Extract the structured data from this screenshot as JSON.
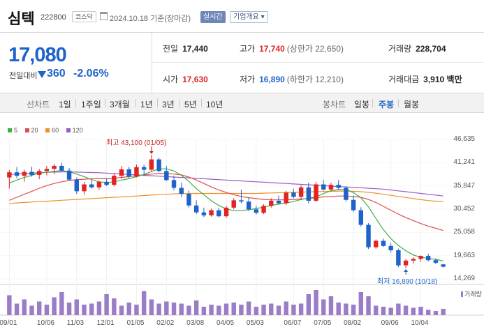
{
  "header": {
    "name": "심텍",
    "code": "222800",
    "market": "코스닥",
    "date": "2024.10.18",
    "basis": "기준(장마감)",
    "realtime": "실시간",
    "company": "기업개요 ▾"
  },
  "quote": {
    "price": "17,080",
    "change_label": "전일대비",
    "change": "360",
    "change_pct": "-2.06%",
    "prev_label": "전일",
    "prev": "17,440",
    "high_label": "고가",
    "high": "17,740",
    "upper": "(상한가 22,650)",
    "volume_label": "거래량",
    "volume": "228,704",
    "open_label": "시가",
    "open": "17,630",
    "low_label": "저가",
    "low": "16,890",
    "lower": "(하한가 12,210)",
    "amount_label": "거래대금",
    "amount": "3,910 백만"
  },
  "tabs": {
    "line_label": "선차트",
    "line_items": [
      "1일",
      "1주일",
      "3개월",
      "1년",
      "3년",
      "5년",
      "10년"
    ],
    "candle_label": "봉차트",
    "candle_items": [
      "일봉",
      "주봉",
      "월봉"
    ],
    "active": "주봉"
  },
  "colors": {
    "up": "#e12323",
    "down": "#1d63c9",
    "ma5": "#3fae49",
    "ma20": "#e14b4b",
    "ma60": "#f08f2a",
    "ma120": "#9b5cc2",
    "volume": "#9b7cc7"
  },
  "chart_data": {
    "type": "candlestick",
    "legend": [
      {
        "name": "5",
        "color": "#3fae49"
      },
      {
        "name": "20",
        "color": "#e14b4b"
      },
      {
        "name": "60",
        "color": "#f08f2a"
      },
      {
        "name": "120",
        "color": "#9b5cc2"
      }
    ],
    "y_ticks": [
      "46,635",
      "41,241",
      "35,847",
      "30,452",
      "25,058",
      "19,663",
      "14,269"
    ],
    "ylim": [
      14269,
      46635
    ],
    "x_ticks": [
      "09/01",
      "10/06",
      "11/03",
      "12/01",
      "01/05",
      "02/02",
      "03/08",
      "04/05",
      "05/03",
      "06/07",
      "07/05",
      "08/02",
      "09/06",
      "10/04"
    ],
    "high_annotation": "최고 43,100 (01/05)",
    "low_annotation": "최저 16,890 (10/18)",
    "volume_label": "거래량",
    "candles": [
      [
        37800,
        39500,
        35200,
        39000
      ],
      [
        39000,
        40200,
        37600,
        38200
      ],
      [
        38200,
        39600,
        36800,
        39100
      ],
      [
        39100,
        40300,
        38000,
        38400
      ],
      [
        38400,
        39800,
        37400,
        39300
      ],
      [
        39300,
        40500,
        38300,
        39800
      ],
      [
        39800,
        41000,
        38600,
        40500
      ],
      [
        40500,
        41200,
        39000,
        39400
      ],
      [
        39400,
        40000,
        37000,
        37300
      ],
      [
        37300,
        37800,
        34000,
        34600
      ],
      [
        34600,
        36800,
        33800,
        36200
      ],
      [
        36200,
        37300,
        35200,
        35500
      ],
      [
        35500,
        37000,
        34900,
        36800
      ],
      [
        36800,
        37600,
        35800,
        36100
      ],
      [
        36100,
        38800,
        35700,
        38200
      ],
      [
        38200,
        40500,
        37500,
        39700
      ],
      [
        39700,
        40300,
        37600,
        38000
      ],
      [
        38000,
        40800,
        37800,
        40200
      ],
      [
        40200,
        40800,
        38100,
        39600
      ],
      [
        39600,
        43100,
        39200,
        42000
      ],
      [
        42000,
        42400,
        39000,
        39300
      ],
      [
        39300,
        40500,
        37000,
        37200
      ],
      [
        37200,
        38200,
        34800,
        35400
      ],
      [
        35400,
        36600,
        33200,
        34000
      ],
      [
        34000,
        34800,
        30800,
        31300
      ],
      [
        31300,
        32500,
        29300,
        29700
      ],
      [
        29700,
        30800,
        28600,
        29000
      ],
      [
        29000,
        30600,
        28700,
        30200
      ],
      [
        30200,
        30800,
        28500,
        28800
      ],
      [
        28800,
        31200,
        28400,
        30800
      ],
      [
        30800,
        33000,
        30400,
        32500
      ],
      [
        32500,
        35000,
        31800,
        32200
      ],
      [
        32200,
        33200,
        30000,
        30400
      ],
      [
        30400,
        31200,
        29200,
        29600
      ],
      [
        29600,
        31600,
        29300,
        31200
      ],
      [
        31200,
        33000,
        30800,
        32400
      ],
      [
        32400,
        33600,
        31500,
        31800
      ],
      [
        31800,
        34700,
        31400,
        34300
      ],
      [
        34300,
        35200,
        33000,
        33300
      ],
      [
        33300,
        36000,
        32600,
        35500
      ],
      [
        35500,
        36600,
        31800,
        32400
      ],
      [
        32400,
        36800,
        32100,
        36200
      ],
      [
        36200,
        37200,
        34700,
        35000
      ],
      [
        35000,
        36600,
        34600,
        36100
      ],
      [
        36100,
        37200,
        34900,
        35400
      ],
      [
        35400,
        35800,
        32200,
        32600
      ],
      [
        32600,
        33600,
        29800,
        30200
      ],
      [
        30200,
        30900,
        26400,
        26800
      ],
      [
        26800,
        27200,
        21200,
        21600
      ],
      [
        21600,
        23400,
        21300,
        23100
      ],
      [
        23100,
        23600,
        21700,
        21900
      ],
      [
        21900,
        22600,
        20400,
        20900
      ],
      [
        20900,
        21300,
        17000,
        17400
      ],
      [
        17400,
        18900,
        16700,
        18500
      ],
      [
        18500,
        19300,
        17800,
        18900
      ],
      [
        18900,
        19700,
        18200,
        19600
      ],
      [
        19600,
        20100,
        18300,
        18600
      ],
      [
        18600,
        19000,
        17700,
        18000
      ],
      [
        17630,
        17740,
        16890,
        17080
      ]
    ],
    "ma5": [
      36500,
      37200,
      37800,
      38300,
      38800,
      39000,
      39200,
      39400,
      39100,
      38600,
      38000,
      37300,
      36800,
      36600,
      36800,
      37200,
      37500,
      38000,
      38500,
      39200,
      39800,
      39800,
      39300,
      38300,
      36900,
      35200,
      33800,
      32400,
      31300,
      30500,
      30100,
      30100,
      30300,
      30600,
      30900,
      31300,
      31600,
      31900,
      32200,
      32700,
      33000,
      33300,
      34100,
      34700,
      35000,
      35000,
      34300,
      33100,
      31000,
      28300,
      25700,
      23600,
      22000,
      20800,
      19800,
      19300,
      19000,
      18800,
      18400
    ],
    "ma20": [
      32500,
      33200,
      33900,
      34600,
      35300,
      35900,
      36400,
      36800,
      37100,
      37300,
      37400,
      37500,
      37500,
      37500,
      37600,
      37800,
      38000,
      38200,
      38400,
      38600,
      38700,
      38700,
      38600,
      38400,
      37900,
      37200,
      36400,
      35600,
      34900,
      34300,
      33800,
      33400,
      33100,
      32900,
      32700,
      32600,
      32600,
      32600,
      32700,
      32800,
      32900,
      33100,
      33300,
      33400,
      33500,
      33500,
      33400,
      33200,
      32700,
      32000,
      31100,
      30200,
      29300,
      28500,
      27800,
      27100,
      26500,
      26000,
      25500
    ],
    "ma60": [
      31800,
      31900,
      32000,
      32100,
      32200,
      32300,
      32400,
      32500,
      32600,
      32700,
      32800,
      32900,
      33000,
      33100,
      33200,
      33300,
      33400,
      33500,
      33600,
      33700,
      33800,
      33900,
      34000,
      34050,
      34100,
      34100,
      34100,
      34100,
      34100,
      34100,
      34100,
      34100,
      34100,
      34100,
      34150,
      34200,
      34250,
      34300,
      34350,
      34400,
      34450,
      34500,
      34550,
      34600,
      34650,
      34650,
      34600,
      34500,
      34350,
      34150,
      33900,
      33650,
      33400,
      33150,
      32900,
      32650,
      32450,
      32300,
      32200
    ],
    "ma120": [
      38500,
      38600,
      38700,
      38800,
      38900,
      39000,
      39050,
      39100,
      39100,
      39050,
      39000,
      38950,
      38900,
      38800,
      38700,
      38600,
      38500,
      38400,
      38300,
      38200,
      38100,
      38000,
      37900,
      37800,
      37700,
      37600,
      37500,
      37400,
      37300,
      37200,
      37100,
      37000,
      36900,
      36800,
      36700,
      36600,
      36500,
      36400,
      36300,
      36200,
      36100,
      36000,
      35900,
      35800,
      35700,
      35600,
      35500,
      35400,
      35300,
      35200,
      35100,
      34900,
      34700,
      34500,
      34300,
      34100,
      33900,
      33700,
      33500
    ],
    "volume": [
      38,
      22,
      30,
      18,
      26,
      20,
      34,
      44,
      24,
      30,
      20,
      22,
      26,
      40,
      32,
      18,
      24,
      20,
      46,
      30,
      22,
      26,
      24,
      22,
      18,
      28,
      16,
      20,
      18,
      22,
      24,
      20,
      26,
      16,
      20,
      22,
      18,
      26,
      20,
      22,
      40,
      48,
      30,
      36,
      24,
      22,
      20,
      44,
      36,
      18,
      16,
      14,
      22,
      18,
      14,
      16,
      10,
      8,
      12
    ]
  }
}
